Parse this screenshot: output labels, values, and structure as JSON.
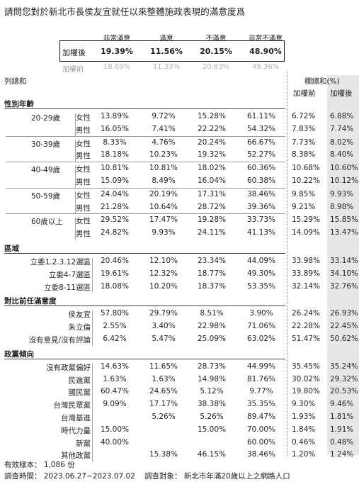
{
  "title": "請問您對於新北市長侯友宜就任以來整體施政表現的滿意度爲",
  "headers": [
    "非常滿意",
    "滿意",
    "不滿意",
    "非常不滿意"
  ],
  "weighted": {
    "label": "加權後",
    "values": [
      "19.39%",
      "11.56%",
      "20.15%",
      "48.90%"
    ]
  },
  "unweighted": {
    "label": "加權前",
    "values": [
      "18.69%",
      "11.33%",
      "20.63%",
      "49.36%"
    ]
  },
  "row_total_label": "列總和",
  "col_total_label": "欄總和(%)",
  "col_total_headers": [
    "加權前",
    "加權後"
  ],
  "sections": [
    {
      "title": "性別年齡",
      "groups": [
        {
          "name": "20-29歲",
          "rows": [
            {
              "label": "女性",
              "values": [
                "13.89%",
                "9.72%",
                "15.28%",
                "61.11%"
              ],
              "before": "6.72%",
              "after": "6.88%"
            },
            {
              "label": "男性",
              "values": [
                "16.05%",
                "7.41%",
                "22.22%",
                "54.32%"
              ],
              "before": "7.83%",
              "after": "7.74%"
            }
          ]
        },
        {
          "name": "30-39歲",
          "rows": [
            {
              "label": "女性",
              "values": [
                "8.33%",
                "4.76%",
                "20.24%",
                "66.67%"
              ],
              "before": "7.73%",
              "after": "8.02%"
            },
            {
              "label": "男性",
              "values": [
                "18.18%",
                "10.23%",
                "19.32%",
                "52.27%"
              ],
              "before": "8.38%",
              "after": "8.40%"
            }
          ]
        },
        {
          "name": "40-49歲",
          "rows": [
            {
              "label": "女性",
              "values": [
                "10.81%",
                "10.81%",
                "18.02%",
                "60.36%"
              ],
              "before": "10.68%",
              "after": "10.60%"
            },
            {
              "label": "男性",
              "values": [
                "15.09%",
                "8.49%",
                "16.04%",
                "60.38%"
              ],
              "before": "10.22%",
              "after": "10.12%"
            }
          ]
        },
        {
          "name": "50-59歲",
          "rows": [
            {
              "label": "女性",
              "values": [
                "24.04%",
                "20.19%",
                "17.31%",
                "38.46%"
              ],
              "before": "9.85%",
              "after": "9.93%"
            },
            {
              "label": "男性",
              "values": [
                "21.28%",
                "10.64%",
                "28.72%",
                "39.36%"
              ],
              "before": "9.21%",
              "after": "8.98%"
            }
          ]
        },
        {
          "name": "60歲以上",
          "rows": [
            {
              "label": "女性",
              "values": [
                "29.52%",
                "17.47%",
                "19.28%",
                "33.73%"
              ],
              "before": "15.29%",
              "after": "15.85%"
            },
            {
              "label": "男性",
              "values": [
                "24.82%",
                "9.93%",
                "24.11%",
                "41.13%"
              ],
              "before": "14.09%",
              "after": "13.47%"
            }
          ]
        }
      ]
    },
    {
      "title": "區域",
      "rows": [
        {
          "label": "立委1.2.3.12選區",
          "values": [
            "20.46%",
            "12.10%",
            "23.34%",
            "44.09%"
          ],
          "before": "33.98%",
          "after": "33.14%"
        },
        {
          "label": "立委4-7選區",
          "values": [
            "19.61%",
            "12.32%",
            "18.77%",
            "49.30%"
          ],
          "before": "33.89%",
          "after": "34.10%"
        },
        {
          "label": "立委8-11選區",
          "values": [
            "18.08%",
            "10.20%",
            "18.37%",
            "53.35%"
          ],
          "before": "32.14%",
          "after": "32.76%"
        }
      ]
    },
    {
      "title": "對比前任滿意度",
      "rows": [
        {
          "label": "侯友宜",
          "values": [
            "57.80%",
            "29.79%",
            "8.51%",
            "3.90%"
          ],
          "before": "26.24%",
          "after": "26.93%"
        },
        {
          "label": "朱立倫",
          "values": [
            "2.55%",
            "3.40%",
            "22.98%",
            "71.06%"
          ],
          "before": "22.28%",
          "after": "22.45%"
        },
        {
          "label": "沒有意見/沒有評論",
          "values": [
            "6.42%",
            "5.47%",
            "25.09%",
            "63.02%"
          ],
          "before": "51.47%",
          "after": "50.62%"
        }
      ]
    },
    {
      "title": "政黨傾向",
      "rows": [
        {
          "label": "沒有政黨偏好",
          "values": [
            "14.63%",
            "11.65%",
            "28.73%",
            "44.99%"
          ],
          "before": "35.45%",
          "after": "35.24%"
        },
        {
          "label": "民進黨",
          "values": [
            "1.63%",
            "1.63%",
            "14.98%",
            "81.76%"
          ],
          "before": "30.02%",
          "after": "29.32%"
        },
        {
          "label": "國民黨",
          "values": [
            "60.47%",
            "24.65%",
            "5.12%",
            "9.77%"
          ],
          "before": "19.80%",
          "after": "20.53%"
        },
        {
          "label": "台灣民眾黨",
          "values": [
            "9.09%",
            "17.17%",
            "38.38%",
            "35.35%"
          ],
          "before": "9.30%",
          "after": "9.46%"
        },
        {
          "label": "台灣基進",
          "values": [
            "",
            "5.26%",
            "5.26%",
            "89.47%"
          ],
          "before": "1.93%",
          "after": "1.81%"
        },
        {
          "label": "時代力量",
          "values": [
            "15.00%",
            "",
            "15.00%",
            "70.00%"
          ],
          "before": "1.84%",
          "after": "1.91%"
        },
        {
          "label": "新黨",
          "values": [
            "40.00%",
            "",
            "",
            "60.00%"
          ],
          "before": "0.46%",
          "after": "0.48%"
        },
        {
          "label": "其他政黨",
          "values": [
            "",
            "15.38%",
            "46.15%",
            "38.46%"
          ],
          "before": "1.20%",
          "after": "1.24%"
        }
      ]
    }
  ],
  "footer": {
    "sample": "有效樣本： 1,086 份",
    "period": "調查時間： 2023.06.27~2023.07.02",
    "target": "調查對象： 新北市年滿20歲以上之網路人口"
  }
}
